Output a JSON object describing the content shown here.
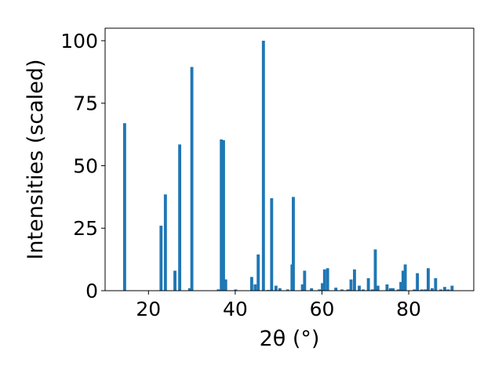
{
  "chart_data": {
    "type": "bar",
    "xlabel": "2θ (°)",
    "ylabel": "Intensities (scaled)",
    "xlim": [
      10,
      95
    ],
    "ylim": [
      0,
      105
    ],
    "xticks": [
      20,
      40,
      60,
      80
    ],
    "yticks": [
      0,
      25,
      50,
      75,
      100
    ],
    "bar_color": "#1f77b4",
    "bar_width_deg": 0.7,
    "x": [
      14.5,
      22.9,
      23.9,
      26.1,
      27.2,
      29.5,
      30.0,
      36.1,
      36.8,
      37.3,
      37.8,
      40.1,
      43.8,
      44.6,
      45.3,
      46.5,
      47.6,
      48.4,
      49.4,
      50.3,
      52.1,
      53.1,
      53.4,
      55.5,
      56.0,
      57.6,
      59.4,
      60.1,
      60.6,
      61.3,
      63.2,
      64.6,
      66.0,
      66.7,
      67.5,
      68.6,
      69.5,
      70.7,
      71.6,
      72.3,
      72.9,
      75.0,
      75.8,
      76.4,
      77.6,
      78.2,
      78.7,
      79.2,
      81.3,
      82.0,
      83.0,
      83.8,
      84.5,
      85.4,
      86.2,
      87.4,
      88.3,
      89.1,
      90.0
    ],
    "values": [
      67,
      26,
      38.5,
      8,
      58.5,
      1,
      89.5,
      0.5,
      60.5,
      60.2,
      4.5,
      0.5,
      5.5,
      2.5,
      14.5,
      100,
      0.3,
      37,
      2,
      1,
      0.5,
      10.5,
      37.5,
      2.5,
      8,
      1,
      0.5,
      3,
      8.5,
      9,
      1.2,
      0.5,
      0.5,
      4.5,
      8.5,
      2,
      0.5,
      5,
      0.5,
      16.5,
      2,
      2.5,
      1,
      1,
      0.5,
      3.5,
      8,
      10.5,
      0.5,
      7,
      0.5,
      0.5,
      9,
      1,
      5,
      0.5,
      1.5,
      0.5,
      2
    ]
  }
}
